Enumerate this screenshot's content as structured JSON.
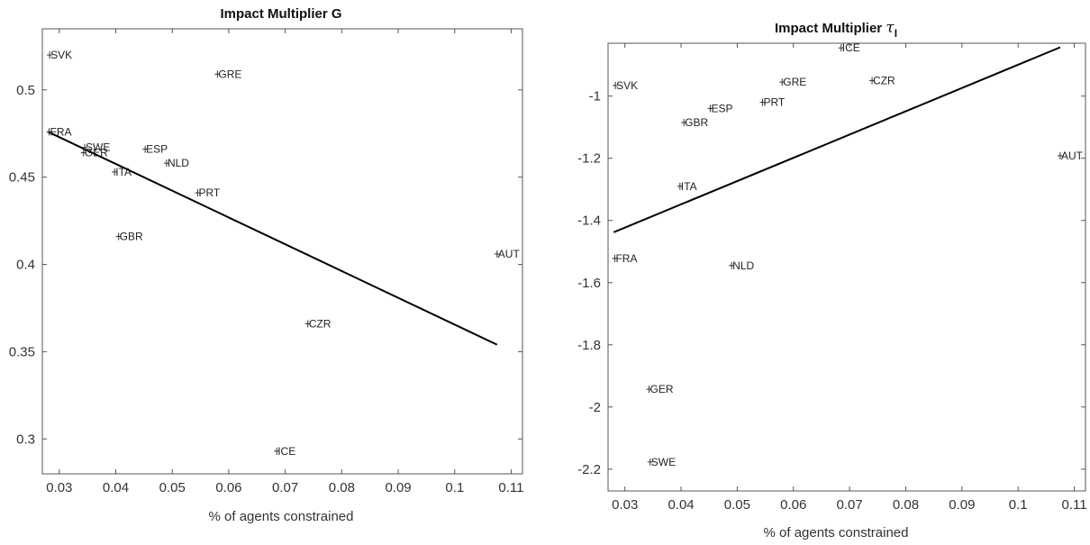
{
  "chart_data": [
    {
      "type": "scatter",
      "title": "Impact Multiplier G",
      "title_subscript": "",
      "xlabel": "% of agents constrained",
      "ylabel": "",
      "xlim": [
        0.027,
        0.112
      ],
      "ylim": [
        0.28,
        0.535
      ],
      "xticks": [
        0.03,
        0.04,
        0.05,
        0.06,
        0.07,
        0.08,
        0.09,
        0.1,
        0.11
      ],
      "yticks": [
        0.3,
        0.35,
        0.4,
        0.45,
        0.5
      ],
      "grid": false,
      "points": [
        {
          "label": "SVK",
          "x": 0.0283,
          "y": 0.52
        },
        {
          "label": "GRE",
          "x": 0.058,
          "y": 0.509
        },
        {
          "label": "FRA",
          "x": 0.0282,
          "y": 0.476
        },
        {
          "label": "SWE",
          "x": 0.0345,
          "y": 0.467
        },
        {
          "label": "GER",
          "x": 0.0343,
          "y": 0.464
        },
        {
          "label": "ESP",
          "x": 0.0452,
          "y": 0.466
        },
        {
          "label": "NLD",
          "x": 0.049,
          "y": 0.458
        },
        {
          "label": "ITA",
          "x": 0.0398,
          "y": 0.453
        },
        {
          "label": "PRT",
          "x": 0.0545,
          "y": 0.441
        },
        {
          "label": "GBR",
          "x": 0.0405,
          "y": 0.416
        },
        {
          "label": "AUT",
          "x": 0.1075,
          "y": 0.406
        },
        {
          "label": "CZR",
          "x": 0.074,
          "y": 0.366
        },
        {
          "label": "ICE",
          "x": 0.0685,
          "y": 0.293
        }
      ],
      "fit_line": {
        "x": [
          0.028,
          0.1075
        ],
        "y": [
          0.476,
          0.354
        ]
      }
    },
    {
      "type": "scatter",
      "title": "Impact Multiplier ",
      "title_symbol": "τ",
      "title_subscript": "I",
      "xlabel": "% of agents constrained",
      "ylabel": "",
      "xlim": [
        0.027,
        0.112
      ],
      "ylim": [
        -2.27,
        -0.83
      ],
      "xticks": [
        0.03,
        0.04,
        0.05,
        0.06,
        0.07,
        0.08,
        0.09,
        0.1,
        0.11
      ],
      "yticks": [
        -2.2,
        -2,
        -1.8,
        -1.6,
        -1.4,
        -1.2,
        -1
      ],
      "grid": false,
      "points": [
        {
          "label": "ICE",
          "x": 0.0685,
          "y": -0.845
        },
        {
          "label": "SVK",
          "x": 0.0283,
          "y": -0.966
        },
        {
          "label": "GRE",
          "x": 0.058,
          "y": -0.955
        },
        {
          "label": "CZR",
          "x": 0.074,
          "y": -0.95
        },
        {
          "label": "ESP",
          "x": 0.0452,
          "y": -1.04
        },
        {
          "label": "PRT",
          "x": 0.0545,
          "y": -1.02
        },
        {
          "label": "GBR",
          "x": 0.0405,
          "y": -1.085
        },
        {
          "label": "AUT",
          "x": 0.1075,
          "y": -1.192
        },
        {
          "label": "ITA",
          "x": 0.0398,
          "y": -1.29
        },
        {
          "label": "FRA",
          "x": 0.0282,
          "y": -1.522
        },
        {
          "label": "NLD",
          "x": 0.049,
          "y": -1.545
        },
        {
          "label": "GER",
          "x": 0.0343,
          "y": -1.943
        },
        {
          "label": "SWE",
          "x": 0.0345,
          "y": -2.177
        }
      ],
      "fit_line": {
        "x": [
          0.028,
          0.1075
        ],
        "y": [
          -1.438,
          -0.843
        ]
      }
    }
  ]
}
